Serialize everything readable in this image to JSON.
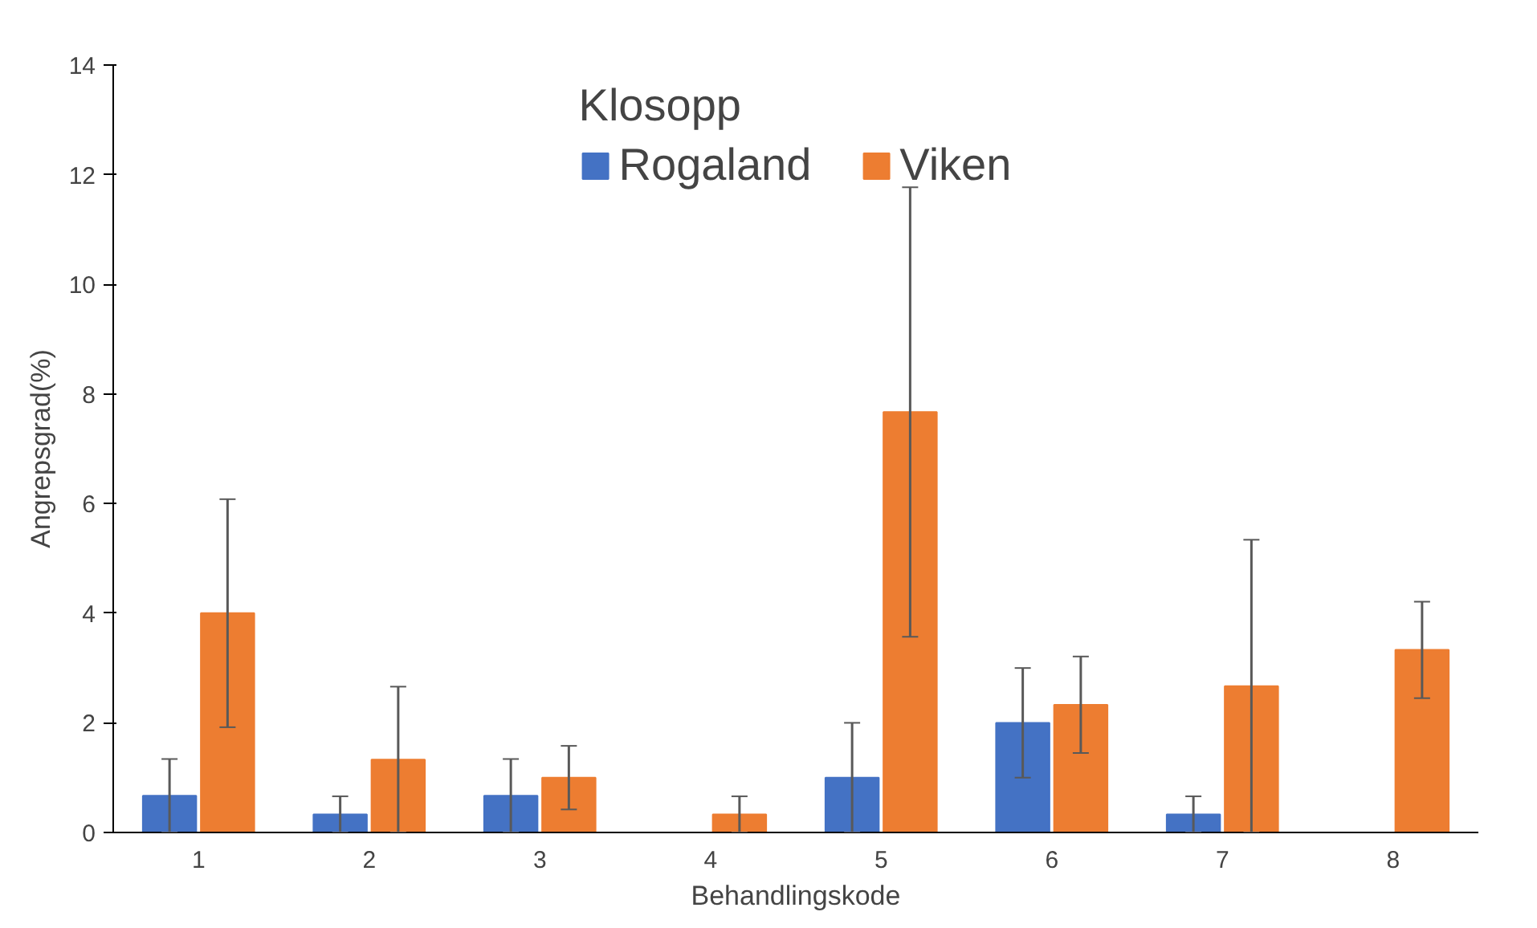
{
  "chart_data": {
    "type": "bar",
    "xlabel": "Behandlingskode",
    "ylabel": "Angrepsgrad(%)",
    "legend_title": "Klosopp",
    "legend": "top",
    "grid": false,
    "categories": [
      "1",
      "2",
      "3",
      "4",
      "5",
      "6",
      "7",
      "8"
    ],
    "ylim": [
      0,
      14
    ],
    "yticks": [
      0,
      2,
      4,
      6,
      8,
      10,
      12,
      14
    ],
    "series": [
      {
        "name": "Rogaland",
        "color": "#4472c4",
        "values": [
          0.67,
          0.33,
          0.67,
          null,
          1.0,
          2.0,
          0.33,
          null
        ],
        "errors": [
          0.67,
          0.33,
          0.67,
          null,
          1.0,
          1.0,
          0.33,
          null
        ]
      },
      {
        "name": "Viken",
        "color": "#ed7d31",
        "values": [
          4.0,
          1.33,
          1.0,
          0.33,
          7.67,
          2.33,
          2.67,
          3.33
        ],
        "errors": [
          2.08,
          1.33,
          0.58,
          0.33,
          4.1,
          0.88,
          2.67,
          0.88
        ]
      }
    ]
  }
}
